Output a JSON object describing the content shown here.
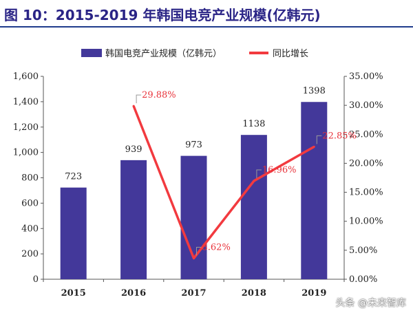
{
  "title": "图 10：2015-2019 年韩国电竞产业规模(亿韩元)",
  "watermark": "头条 @未来智库",
  "colors": {
    "bar": "#43389a",
    "line": "#f23a3f",
    "label": "#e8323a",
    "axis": "#555555"
  },
  "chart_data": {
    "type": "bar",
    "categories": [
      "2015",
      "2016",
      "2017",
      "2018",
      "2019"
    ],
    "series": [
      {
        "name": "韩国电竞产业规模（亿韩元）",
        "type": "bar",
        "axis": "left",
        "values": [
          723,
          939,
          973,
          1138,
          1398
        ],
        "labels": [
          "723",
          "939",
          "973",
          "1138",
          "1398"
        ]
      },
      {
        "name": "同比增长",
        "type": "line",
        "axis": "right",
        "values": [
          null,
          29.88,
          3.62,
          16.96,
          22.85
        ],
        "labels": [
          "",
          "29.88%",
          "3.62%",
          "16.96%",
          "22.85%"
        ]
      }
    ],
    "y_left": {
      "lim": [
        0,
        1600
      ],
      "ticks": [
        0,
        200,
        400,
        600,
        800,
        1000,
        1200,
        1400,
        1600
      ],
      "tick_labels": [
        "0",
        "200",
        "400",
        "600",
        "800",
        "1,000",
        "1,200",
        "1,400",
        "1,600"
      ]
    },
    "y_right": {
      "lim": [
        0,
        35
      ],
      "ticks": [
        0,
        5,
        10,
        15,
        20,
        25,
        30,
        35
      ],
      "tick_labels": [
        "0.00%",
        "5.00%",
        "10.00%",
        "15.00%",
        "20.00%",
        "25.00%",
        "30.00%",
        "35.00%"
      ]
    },
    "legend_position": "top",
    "grid": false
  }
}
